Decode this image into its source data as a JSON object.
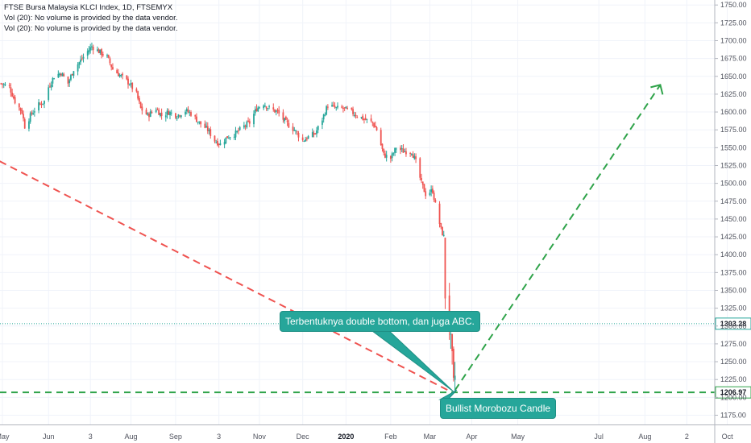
{
  "legend": {
    "title": "FTSE Bursa Malaysia KLCI Index, 1D, FTSEMYX",
    "vol1": "Vol (20): No volume is provided by the data vendor.",
    "vol2": "Vol (20): No volume is provided by the data vendor."
  },
  "colors": {
    "up": "#26a69a",
    "down": "#ef5350",
    "grid": "#f0f3fa",
    "level_line": "#26a69a",
    "bearish_trend": "#ef5350",
    "bullish_projection": "#2fa34a"
  },
  "callouts": {
    "double_bottom": "Terbentuknya double bottom, dan juga ABC.",
    "morobozu": "Bullist Morobozu Candle"
  },
  "chart_data": {
    "type": "candlestick",
    "y_axis": {
      "range": [
        1162,
        1757
      ],
      "ticks": [
        1175,
        1200,
        1225,
        1250,
        1275,
        1300,
        1325,
        1350,
        1375,
        1400,
        1425,
        1450,
        1475,
        1500,
        1525,
        1550,
        1575,
        1600,
        1625,
        1650,
        1675,
        1700,
        1725,
        1750
      ],
      "tick_labels": [
        "1175.00",
        "1200.00",
        "1225.00",
        "1250.00",
        "1275.00",
        "1300.00",
        "1325.00",
        "1350.00",
        "1375.00",
        "1400.00",
        "1425.00",
        "1450.00",
        "1475.00",
        "1500.00",
        "1525.00",
        "1550.00",
        "1575.00",
        "1600.00",
        "1625.00",
        "1650.00",
        "1675.00",
        "1700.00",
        "1725.00",
        "1750.00"
      ]
    },
    "x_axis": {
      "tick_labels": [
        "May",
        "Jun",
        "3",
        "Aug",
        "Sep",
        "3",
        "Nov",
        "Dec",
        "2020",
        "Feb",
        "Mar",
        "Apr",
        "May",
        "Jul",
        "Aug",
        "2",
        "Oct"
      ],
      "tick_dates": [
        "2019-05-01",
        "2019-06-03",
        "2019-07-03",
        "2019-08-01",
        "2019-09-02",
        "2019-10-03",
        "2019-11-01",
        "2019-12-02",
        "2020-01-02",
        "2020-02-03",
        "2020-03-02",
        "2020-04-01",
        "2020-05-04",
        "2020-07-01",
        "2020-08-03",
        "2020-09-02",
        "2020-10-01"
      ]
    },
    "close_path": [
      [
        "2019-04-30",
        1640
      ],
      [
        "2019-05-06",
        1635
      ],
      [
        "2019-05-10",
        1615
      ],
      [
        "2019-05-15",
        1600
      ],
      [
        "2019-05-17",
        1580
      ],
      [
        "2019-05-22",
        1598
      ],
      [
        "2019-05-27",
        1610
      ],
      [
        "2019-05-31",
        1615
      ],
      [
        "2019-06-03",
        1635
      ],
      [
        "2019-06-07",
        1650
      ],
      [
        "2019-06-12",
        1655
      ],
      [
        "2019-06-17",
        1640
      ],
      [
        "2019-06-21",
        1660
      ],
      [
        "2019-06-26",
        1672
      ],
      [
        "2019-07-01",
        1685
      ],
      [
        "2019-07-04",
        1692
      ],
      [
        "2019-07-09",
        1685
      ],
      [
        "2019-07-15",
        1677
      ],
      [
        "2019-07-19",
        1660
      ],
      [
        "2019-07-25",
        1650
      ],
      [
        "2019-07-31",
        1640
      ],
      [
        "2019-08-05",
        1625
      ],
      [
        "2019-08-08",
        1605
      ],
      [
        "2019-08-13",
        1595
      ],
      [
        "2019-08-19",
        1605
      ],
      [
        "2019-08-23",
        1595
      ],
      [
        "2019-08-28",
        1600
      ],
      [
        "2019-09-03",
        1595
      ],
      [
        "2019-09-09",
        1602
      ],
      [
        "2019-09-13",
        1598
      ],
      [
        "2019-09-19",
        1585
      ],
      [
        "2019-09-25",
        1575
      ],
      [
        "2019-09-30",
        1560
      ],
      [
        "2019-10-04",
        1555
      ],
      [
        "2019-10-09",
        1565
      ],
      [
        "2019-10-15",
        1570
      ],
      [
        "2019-10-21",
        1580
      ],
      [
        "2019-10-25",
        1585
      ],
      [
        "2019-10-30",
        1605
      ],
      [
        "2019-11-04",
        1612
      ],
      [
        "2019-11-08",
        1605
      ],
      [
        "2019-11-14",
        1600
      ],
      [
        "2019-11-20",
        1585
      ],
      [
        "2019-11-26",
        1575
      ],
      [
        "2019-12-02",
        1560
      ],
      [
        "2019-12-06",
        1565
      ],
      [
        "2019-12-11",
        1570
      ],
      [
        "2019-12-16",
        1590
      ],
      [
        "2019-12-20",
        1610
      ],
      [
        "2019-12-26",
        1605
      ],
      [
        "2019-12-31",
        1605
      ],
      [
        "2020-01-06",
        1600
      ],
      [
        "2020-01-10",
        1595
      ],
      [
        "2020-01-15",
        1590
      ],
      [
        "2020-01-21",
        1585
      ],
      [
        "2020-01-24",
        1575
      ],
      [
        "2020-01-29",
        1540
      ],
      [
        "2020-02-03",
        1535
      ],
      [
        "2020-02-07",
        1550
      ],
      [
        "2020-02-12",
        1545
      ],
      [
        "2020-02-18",
        1545
      ],
      [
        "2020-02-21",
        1530
      ],
      [
        "2020-02-25",
        1500
      ],
      [
        "2020-02-28",
        1485
      ],
      [
        "2020-03-04",
        1490
      ],
      [
        "2020-03-06",
        1470
      ],
      [
        "2020-03-10",
        1435
      ],
      [
        "2020-03-12",
        1425
      ],
      [
        "2020-03-13",
        1345
      ],
      [
        "2020-03-16",
        1300
      ],
      [
        "2020-03-18",
        1250
      ],
      [
        "2020-03-19",
        1215
      ],
      [
        "2020-03-20",
        1230
      ]
    ],
    "levels": [
      {
        "value": 1303.28,
        "label": "1303.28"
      },
      {
        "value": 1206.97,
        "label": "1206.97"
      }
    ],
    "trend_lines": [
      {
        "name": "",
        "points": [
          [
            "2019-04-29",
            1531
          ],
          [
            "2020-03-19",
            1206
          ]
        ]
      },
      {
        "name": "",
        "points": [
          [
            "2020-03-20",
            1210
          ],
          [
            "2020-08-14",
            1638
          ]
        ]
      }
    ]
  }
}
